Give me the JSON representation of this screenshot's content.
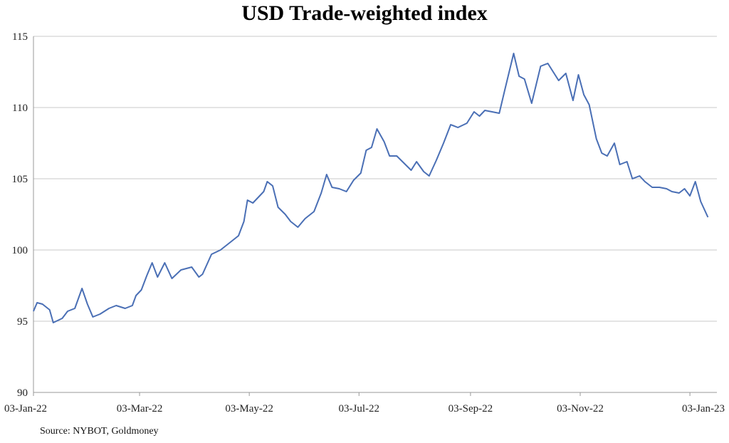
{
  "chart_data": {
    "type": "line",
    "title": "USD Trade-weighted index",
    "xlabel": "",
    "ylabel": "",
    "ylim": [
      90,
      115
    ],
    "xlim": [
      "2022-01-03",
      "2023-01-18"
    ],
    "y_ticks": [
      90,
      95,
      100,
      105,
      110,
      115
    ],
    "x_ticks": [
      {
        "date": "2022-01-03",
        "label": "03-Jan-22"
      },
      {
        "date": "2022-03-03",
        "label": "03-Mar-22"
      },
      {
        "date": "2022-05-03",
        "label": "03-May-22"
      },
      {
        "date": "2022-07-03",
        "label": "03-Jul-22"
      },
      {
        "date": "2022-09-03",
        "label": "03-Sep-22"
      },
      {
        "date": "2022-11-03",
        "label": "03-Nov-22"
      },
      {
        "date": "2023-01-03",
        "label": "03-Jan-23"
      }
    ],
    "grid": "horizontal",
    "legend": "none",
    "line_color": "#4a6fb5",
    "series": [
      {
        "values": [
          [
            "2022-01-03",
            95.7
          ],
          [
            "2022-01-05",
            96.3
          ],
          [
            "2022-01-08",
            96.2
          ],
          [
            "2022-01-12",
            95.8
          ],
          [
            "2022-01-14",
            94.9
          ],
          [
            "2022-01-19",
            95.2
          ],
          [
            "2022-01-22",
            95.7
          ],
          [
            "2022-01-26",
            95.9
          ],
          [
            "2022-01-30",
            97.3
          ],
          [
            "2022-02-02",
            96.2
          ],
          [
            "2022-02-05",
            95.3
          ],
          [
            "2022-02-09",
            95.5
          ],
          [
            "2022-02-14",
            95.9
          ],
          [
            "2022-02-18",
            96.1
          ],
          [
            "2022-02-23",
            95.9
          ],
          [
            "2022-02-27",
            96.1
          ],
          [
            "2022-03-01",
            96.8
          ],
          [
            "2022-03-04",
            97.2
          ],
          [
            "2022-03-07",
            98.2
          ],
          [
            "2022-03-10",
            99.1
          ],
          [
            "2022-03-13",
            98.1
          ],
          [
            "2022-03-17",
            99.1
          ],
          [
            "2022-03-21",
            98.0
          ],
          [
            "2022-03-26",
            98.6
          ],
          [
            "2022-04-01",
            98.8
          ],
          [
            "2022-04-05",
            98.1
          ],
          [
            "2022-04-07",
            98.3
          ],
          [
            "2022-04-12",
            99.7
          ],
          [
            "2022-04-17",
            100.0
          ],
          [
            "2022-04-22",
            100.5
          ],
          [
            "2022-04-27",
            101.0
          ],
          [
            "2022-04-30",
            102.0
          ],
          [
            "2022-05-02",
            103.5
          ],
          [
            "2022-05-05",
            103.3
          ],
          [
            "2022-05-08",
            103.7
          ],
          [
            "2022-05-11",
            104.1
          ],
          [
            "2022-05-13",
            104.8
          ],
          [
            "2022-05-16",
            104.5
          ],
          [
            "2022-05-19",
            103.0
          ],
          [
            "2022-05-23",
            102.5
          ],
          [
            "2022-05-26",
            102.0
          ],
          [
            "2022-05-30",
            101.6
          ],
          [
            "2022-06-03",
            102.2
          ],
          [
            "2022-06-08",
            102.7
          ],
          [
            "2022-06-12",
            104.0
          ],
          [
            "2022-06-15",
            105.3
          ],
          [
            "2022-06-18",
            104.4
          ],
          [
            "2022-06-22",
            104.3
          ],
          [
            "2022-06-26",
            104.1
          ],
          [
            "2022-06-30",
            104.9
          ],
          [
            "2022-07-04",
            105.4
          ],
          [
            "2022-07-07",
            107.0
          ],
          [
            "2022-07-10",
            107.2
          ],
          [
            "2022-07-13",
            108.5
          ],
          [
            "2022-07-17",
            107.6
          ],
          [
            "2022-07-20",
            106.6
          ],
          [
            "2022-07-24",
            106.6
          ],
          [
            "2022-07-28",
            106.1
          ],
          [
            "2022-08-01",
            105.6
          ],
          [
            "2022-08-04",
            106.2
          ],
          [
            "2022-08-08",
            105.5
          ],
          [
            "2022-08-11",
            105.2
          ],
          [
            "2022-08-15",
            106.3
          ],
          [
            "2022-08-19",
            107.5
          ],
          [
            "2022-08-23",
            108.8
          ],
          [
            "2022-08-27",
            108.6
          ],
          [
            "2022-09-01",
            108.9
          ],
          [
            "2022-09-05",
            109.7
          ],
          [
            "2022-09-08",
            109.4
          ],
          [
            "2022-09-11",
            109.8
          ],
          [
            "2022-09-15",
            109.7
          ],
          [
            "2022-09-19",
            109.6
          ],
          [
            "2022-09-22",
            111.2
          ],
          [
            "2022-09-27",
            113.8
          ],
          [
            "2022-09-30",
            112.2
          ],
          [
            "2022-10-03",
            112.0
          ],
          [
            "2022-10-07",
            110.3
          ],
          [
            "2022-10-12",
            112.9
          ],
          [
            "2022-10-16",
            113.1
          ],
          [
            "2022-10-19",
            112.5
          ],
          [
            "2022-10-22",
            111.9
          ],
          [
            "2022-10-26",
            112.4
          ],
          [
            "2022-10-30",
            110.5
          ],
          [
            "2022-11-02",
            112.3
          ],
          [
            "2022-11-05",
            110.9
          ],
          [
            "2022-11-08",
            110.2
          ],
          [
            "2022-11-12",
            107.8
          ],
          [
            "2022-11-15",
            106.8
          ],
          [
            "2022-11-18",
            106.6
          ],
          [
            "2022-11-22",
            107.5
          ],
          [
            "2022-11-25",
            106.0
          ],
          [
            "2022-11-29",
            106.2
          ],
          [
            "2022-12-02",
            105.0
          ],
          [
            "2022-12-06",
            105.2
          ],
          [
            "2022-12-09",
            104.8
          ],
          [
            "2022-12-13",
            104.4
          ],
          [
            "2022-12-17",
            104.4
          ],
          [
            "2022-12-21",
            104.3
          ],
          [
            "2022-12-24",
            104.1
          ],
          [
            "2022-12-28",
            104.0
          ],
          [
            "2022-12-31",
            104.3
          ],
          [
            "2023-01-03",
            103.8
          ],
          [
            "2023-01-06",
            104.8
          ],
          [
            "2023-01-09",
            103.4
          ],
          [
            "2023-01-13",
            102.3
          ]
        ]
      }
    ]
  },
  "footer": {
    "source": "Source: NYBOT, Goldmoney"
  }
}
